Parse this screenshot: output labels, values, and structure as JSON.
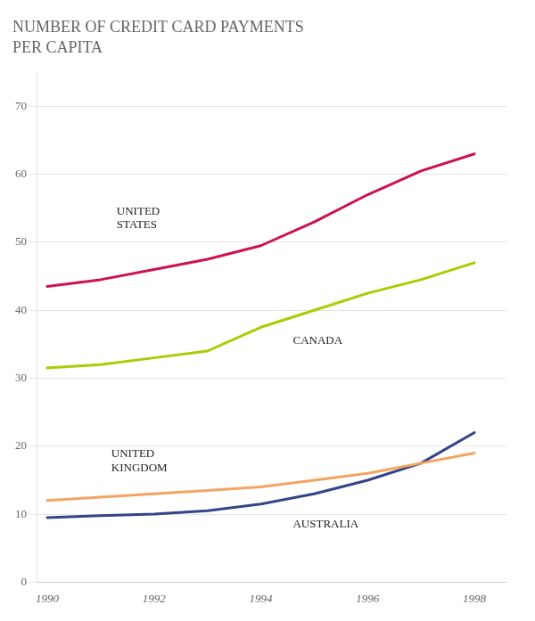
{
  "chart_data": {
    "type": "line",
    "title": "NUMBER OF CREDIT CARD PAYMENTS",
    "subtitle": "PER CAPITA",
    "x": [
      1990,
      1991,
      1992,
      1993,
      1994,
      1995,
      1996,
      1997,
      1998
    ],
    "series": [
      {
        "color": "#cc1155",
        "values": [
          43.5,
          44.5,
          46.0,
          47.5,
          49.5,
          53.0,
          57.0,
          60.5,
          63.0
        ]
      },
      {
        "color": "#aacc00",
        "values": [
          31.5,
          32.0,
          33.0,
          34.0,
          37.5,
          40.0,
          42.5,
          44.5,
          47.0
        ]
      },
      {
        "color": "#f4a460",
        "values": [
          12.0,
          12.5,
          13.0,
          13.5,
          14.0,
          15.0,
          16.0,
          17.5,
          19.0
        ]
      },
      {
        "color": "#334488",
        "values": [
          9.5,
          9.8,
          10.0,
          10.5,
          11.5,
          13.0,
          15.0,
          17.5,
          22.0
        ]
      }
    ],
    "xlim": [
      1989.8,
      1998.6
    ],
    "xticks": [
      1990,
      1992,
      1994,
      1996,
      1998
    ],
    "ylim": [
      0,
      75
    ],
    "yticks": [
      0,
      10,
      20,
      30,
      40,
      50,
      60,
      70
    ],
    "grid": true,
    "annotations": [
      {
        "text": "UNITED\nSTATES",
        "x": 1991.3,
        "y": 53.5
      },
      {
        "text": "CANADA",
        "x": 1994.6,
        "y": 35.5
      },
      {
        "text": "UNITED\nKINGDOM",
        "x": 1991.2,
        "y": 17.8
      },
      {
        "text": "AUSTRALIA",
        "x": 1994.6,
        "y": 8.5
      }
    ]
  }
}
